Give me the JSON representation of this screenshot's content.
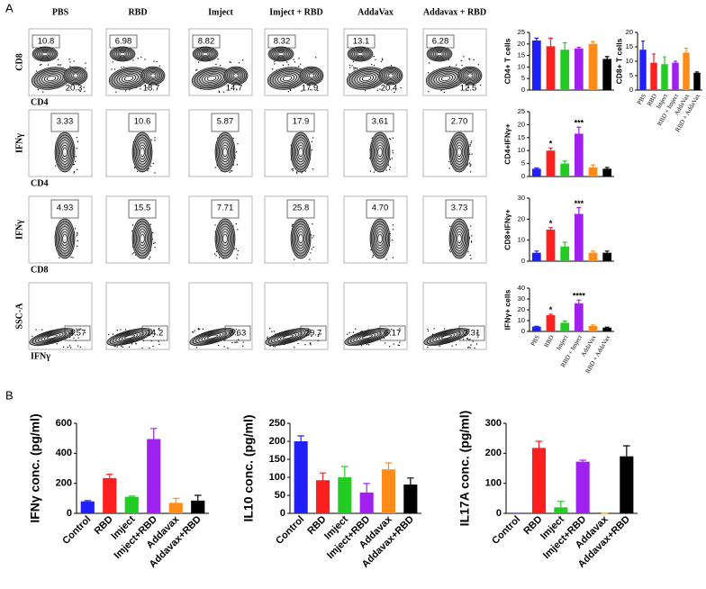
{
  "panel_labels": [
    "A",
    "B"
  ],
  "flow": {
    "columns": [
      "PBS",
      "RBD",
      "Imject",
      "Imject + RBD",
      "AddaVax",
      "Addavax + RBD"
    ],
    "rows": [
      {
        "y_label": "CD8",
        "x_label": "CD4",
        "gates": [
          [
            "10.8",
            "20.3"
          ],
          [
            "6.98",
            "18.7"
          ],
          [
            "8.82",
            "14.7"
          ],
          [
            "8.32",
            "17.9"
          ],
          [
            "13.1",
            "20.4"
          ],
          [
            "6.28",
            "12.5"
          ]
        ]
      },
      {
        "y_label": "IFNγ",
        "x_label": "CD4",
        "gates": [
          [
            "3.33"
          ],
          [
            "10.6"
          ],
          [
            "5.87"
          ],
          [
            "17.9"
          ],
          [
            "3.61"
          ],
          [
            "2.70"
          ]
        ]
      },
      {
        "y_label": "IFNγ",
        "x_label": "CD8",
        "gates": [
          [
            "4.93"
          ],
          [
            "15.5"
          ],
          [
            "7.71"
          ],
          [
            "25.8"
          ],
          [
            "4.70"
          ],
          [
            "3.73"
          ]
        ]
      },
      {
        "y_label": "SSC-A",
        "x_label": "IFNγ",
        "gates": [
          [
            "4.57"
          ],
          [
            "14.2"
          ],
          [
            "8.63"
          ],
          [
            "29.7"
          ],
          [
            "6.17"
          ],
          [
            "3.31"
          ]
        ]
      }
    ]
  },
  "chart_data": [
    {
      "type": "bar",
      "y_label": "CD4+ T cells",
      "values": [
        21.5,
        19,
        17.5,
        18,
        20,
        13.5
      ],
      "errors": [
        1,
        3.5,
        3,
        0.5,
        1,
        1
      ],
      "colors": [
        "#1f1fff",
        "#ff1f1f",
        "#22cc22",
        "#a020f0",
        "#ff8c1a",
        "#000000"
      ],
      "ylim": [
        0,
        25
      ],
      "yticks": [
        0,
        5,
        10,
        15,
        20,
        25
      ]
    },
    {
      "type": "bar",
      "y_label": "CD8+ T cells",
      "categories": [
        "PBS",
        "RBD",
        "Imject",
        "RBD + Imject",
        "AddaVax",
        "RBD + AddaVax"
      ],
      "values": [
        14,
        9.5,
        9,
        9.5,
        13,
        6
      ],
      "errors": [
        3,
        3,
        2.5,
        0.5,
        1.5,
        0.3
      ],
      "colors": [
        "#1f1fff",
        "#ff1f1f",
        "#22cc22",
        "#a020f0",
        "#ff8c1a",
        "#000000"
      ],
      "ylim": [
        0,
        20
      ],
      "yticks": [
        0,
        5,
        10,
        15,
        20
      ]
    },
    {
      "type": "bar",
      "y_label": "CD4+IFNγ+",
      "values": [
        3,
        10,
        5,
        16.5,
        3.5,
        3
      ],
      "errors": [
        0.3,
        1,
        1,
        2.5,
        1,
        0.5
      ],
      "annotations": [
        null,
        "*",
        null,
        "***",
        null,
        null
      ],
      "colors": [
        "#1f1fff",
        "#ff1f1f",
        "#22cc22",
        "#a020f0",
        "#ff8c1a",
        "#000000"
      ],
      "ylim": [
        0,
        25
      ],
      "yticks": [
        0,
        5,
        10,
        15,
        20,
        25
      ]
    },
    {
      "type": "bar",
      "y_label": "CD8+IFNγ+",
      "values": [
        4,
        15,
        7,
        22.5,
        4,
        4
      ],
      "errors": [
        0.8,
        1,
        2,
        3,
        0.8,
        0.8
      ],
      "annotations": [
        null,
        "*",
        null,
        "***",
        null,
        null
      ],
      "colors": [
        "#1f1fff",
        "#ff1f1f",
        "#22cc22",
        "#a020f0",
        "#ff8c1a",
        "#000000"
      ],
      "ylim": [
        0,
        30
      ],
      "yticks": [
        0,
        10,
        20,
        30
      ]
    },
    {
      "type": "bar",
      "y_label": "IFNγ+ cells",
      "categories": [
        "PBS",
        "RBD",
        "Imject",
        "RBD + Imject",
        "AddaVax",
        "RBD + AddaVax"
      ],
      "values": [
        4.5,
        15,
        8,
        26,
        5,
        3.5
      ],
      "errors": [
        0.3,
        1,
        1.5,
        3,
        1,
        0.5
      ],
      "annotations": [
        null,
        "*",
        null,
        "****",
        null,
        null
      ],
      "colors": [
        "#1f1fff",
        "#ff1f1f",
        "#22cc22",
        "#a020f0",
        "#ff8c1a",
        "#000000"
      ],
      "ylim": [
        0,
        40
      ],
      "yticks": [
        0,
        10,
        20,
        30,
        40
      ]
    },
    {
      "type": "bar",
      "y_label": "IFNγ conc. (pg/ml)",
      "categories": [
        "Control",
        "RBD",
        "Imject",
        "Imject+RBD",
        "Addavax",
        "Addavax+RBD"
      ],
      "values": [
        80,
        235,
        110,
        495,
        70,
        85
      ],
      "errors": [
        5,
        25,
        5,
        70,
        30,
        35
      ],
      "colors": [
        "#1f1fff",
        "#ff1f1f",
        "#22cc22",
        "#a020f0",
        "#ff8c1a",
        "#000000"
      ],
      "ylim": [
        0,
        600
      ],
      "yticks": [
        0,
        200,
        400,
        600
      ]
    },
    {
      "type": "bar",
      "y_label": "IL10 conc. (pg/ml)",
      "categories": [
        "Control",
        "RBD",
        "Imject",
        "Imject+RBD",
        "Addavax",
        "Addavax+RBD"
      ],
      "values": [
        200,
        92,
        100,
        58,
        122,
        80
      ],
      "errors": [
        15,
        20,
        30,
        25,
        18,
        18
      ],
      "colors": [
        "#1f1fff",
        "#ff1f1f",
        "#22cc22",
        "#a020f0",
        "#ff8c1a",
        "#000000"
      ],
      "ylim": [
        0,
        250
      ],
      "yticks": [
        0,
        50,
        100,
        150,
        200,
        250
      ]
    },
    {
      "type": "bar",
      "y_label": "IL17A conc. (pg/ml)",
      "categories": [
        "Control",
        "RBD",
        "Imject",
        "Imject+RBD",
        "Addavax",
        "Addavax+RBD"
      ],
      "values": [
        0,
        218,
        20,
        172,
        0,
        190
      ],
      "errors": [
        0,
        22,
        20,
        5,
        0,
        35
      ],
      "colors": [
        "#1f1fff",
        "#ff1f1f",
        "#22cc22",
        "#a020f0",
        "#ff8c1a",
        "#000000"
      ],
      "ylim": [
        0,
        300
      ],
      "yticks": [
        0,
        100,
        200,
        300
      ]
    }
  ]
}
